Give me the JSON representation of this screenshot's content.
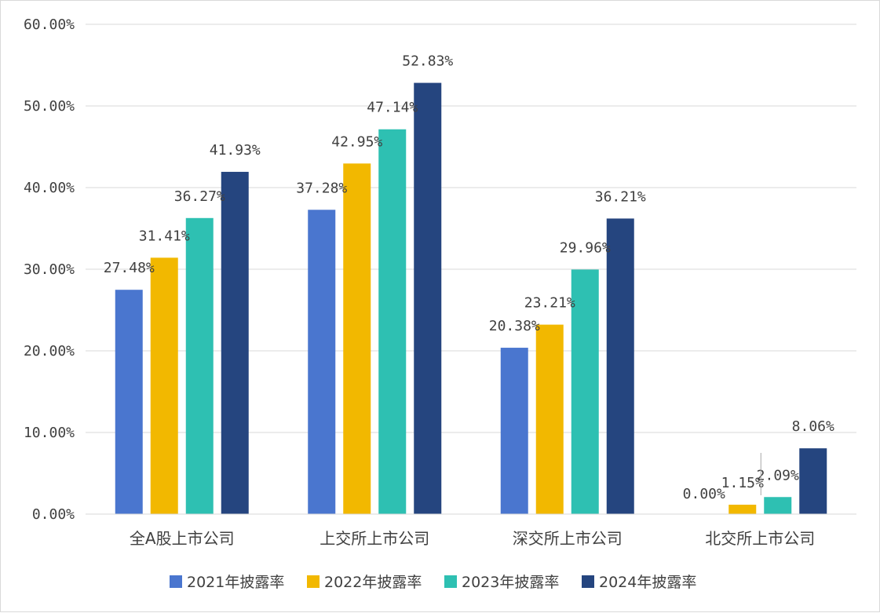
{
  "chart_data": {
    "type": "bar",
    "categories": [
      "全A股上市公司",
      "上交所上市公司",
      "深交所上市公司",
      "北交所上市公司"
    ],
    "series": [
      {
        "name": "2021年披露率",
        "color": "#4A76CF",
        "values": [
          27.48,
          37.28,
          20.38,
          null
        ],
        "labels": [
          "27.48%",
          "37.28%",
          "20.38%",
          null
        ]
      },
      {
        "name": "2022年披露率",
        "color": "#F2B800",
        "values": [
          31.41,
          42.95,
          23.21,
          1.15
        ],
        "labels": [
          "31.41%",
          "42.95%",
          "23.21%",
          "1.15%"
        ]
      },
      {
        "name": "2023年披露率",
        "color": "#2EC0B2",
        "values": [
          36.27,
          47.14,
          29.96,
          2.09
        ],
        "labels": [
          "36.27%",
          "47.14%",
          "29.96%",
          "2.09%"
        ]
      },
      {
        "name": "2024年披露率",
        "color": "#25457F",
        "values": [
          41.93,
          52.83,
          36.21,
          8.06
        ],
        "labels": [
          "41.93%",
          "52.83%",
          "36.21%",
          "8.06%"
        ]
      }
    ],
    "extra_labels": [
      {
        "text": "0.00%",
        "category": 3
      }
    ],
    "ylim": [
      0,
      60
    ],
    "yticks": [
      "0.00%",
      "10.00%",
      "20.00%",
      "30.00%",
      "40.00%",
      "50.00%",
      "60.00%"
    ],
    "grid": true,
    "legend_position": "bottom"
  }
}
